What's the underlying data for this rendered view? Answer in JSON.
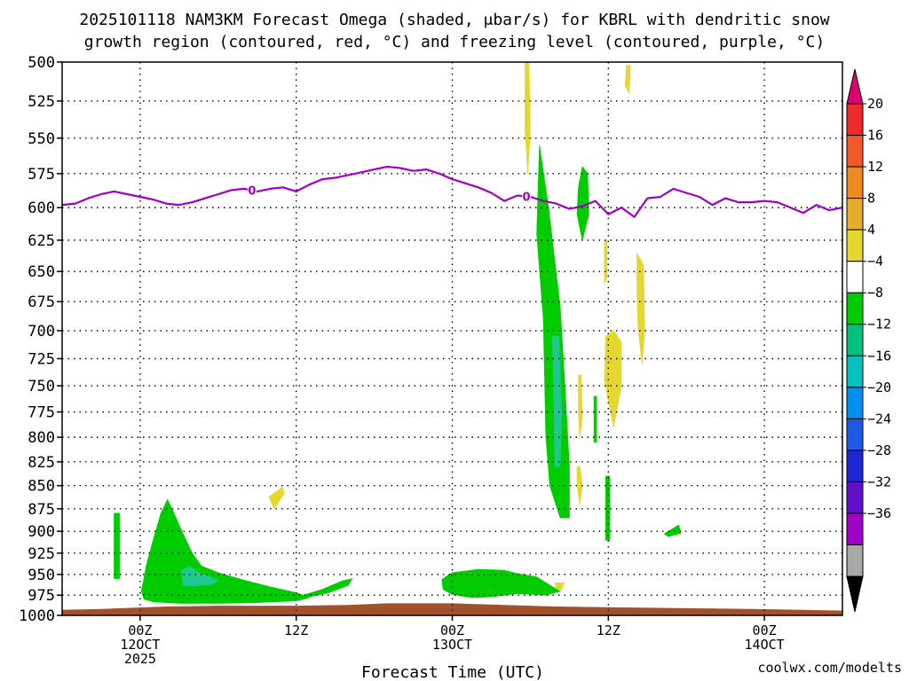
{
  "chart_data": {
    "type": "heatmap",
    "title_line1": "2025101118 NAM3KM Forecast Omega (shaded, μbar/s) for KBRL with dendritic snow",
    "title_line2": "growth region (contoured, red, °C) and freezing level (contoured, purple, °C)",
    "xlabel": "Forecast Time (UTC)",
    "credit": "coolwx.com/modelts",
    "y_axis": {
      "unit": "hPa",
      "reversed": true,
      "ylim": [
        1000,
        500
      ],
      "ticks": [
        500,
        525,
        550,
        575,
        600,
        625,
        650,
        675,
        700,
        725,
        750,
        775,
        800,
        825,
        850,
        875,
        900,
        925,
        950,
        975,
        1000
      ]
    },
    "x_axis": {
      "range_hours": [
        0,
        60
      ],
      "ticks": [
        {
          "hour": 6,
          "lines": [
            "00Z",
            "12OCT",
            "2025"
          ]
        },
        {
          "hour": 18,
          "lines": [
            "12Z"
          ]
        },
        {
          "hour": 30,
          "lines": [
            "00Z",
            "13OCT"
          ]
        },
        {
          "hour": 42,
          "lines": [
            "12Z"
          ]
        },
        {
          "hour": 54,
          "lines": [
            "00Z",
            "14OCT"
          ]
        }
      ]
    },
    "grid": true,
    "colorbar": {
      "placement": "right",
      "labels": [
        "20",
        "16",
        "12",
        "8",
        "4",
        "-4",
        "-8",
        "-12",
        "-16",
        "-20",
        "-24",
        "-28",
        "-32",
        "-36"
      ],
      "colors": [
        "#e0006e",
        "#f02a2a",
        "#f05a28",
        "#ef8a1e",
        "#e6ad2c",
        "#e4d830",
        "#ffffff",
        "#00cc00",
        "#00c080",
        "#00c0c0",
        "#0090f0",
        "#1e5ae6",
        "#1e28d2",
        "#6010c8",
        "#a000c8",
        "#a8a8a8",
        "#000000"
      ]
    },
    "colors": {
      "freezing_level": "#a000c8",
      "terrain": "#a0522d",
      "credit": "#d03030",
      "omega_neg_4": "#00cc00",
      "omega_neg_8": "#20c890",
      "omega_pos_4": "#e4d830"
    },
    "freezing_level": {
      "label": "0",
      "label_hours": [
        14.6,
        35.7
      ],
      "points": [
        [
          0,
          598
        ],
        [
          1,
          597
        ],
        [
          2,
          593
        ],
        [
          3,
          590
        ],
        [
          4,
          588
        ],
        [
          5,
          590
        ],
        [
          6,
          592
        ],
        [
          7,
          594
        ],
        [
          8,
          597
        ],
        [
          9,
          598
        ],
        [
          10,
          596
        ],
        [
          11,
          593
        ],
        [
          12,
          590
        ],
        [
          13,
          587
        ],
        [
          14,
          586
        ],
        [
          15,
          588
        ],
        [
          16,
          586
        ],
        [
          17,
          585
        ],
        [
          18,
          588
        ],
        [
          19,
          583
        ],
        [
          20,
          579
        ],
        [
          21,
          578
        ],
        [
          22,
          576
        ],
        [
          23,
          574
        ],
        [
          24,
          572
        ],
        [
          25,
          570
        ],
        [
          26,
          571
        ],
        [
          27,
          573
        ],
        [
          28,
          572
        ],
        [
          29,
          575
        ],
        [
          30,
          579
        ],
        [
          31,
          582
        ],
        [
          32,
          585
        ],
        [
          33,
          589
        ],
        [
          34,
          595
        ],
        [
          35,
          591
        ],
        [
          36,
          592
        ],
        [
          37,
          595
        ],
        [
          38,
          597
        ],
        [
          39,
          601
        ],
        [
          40,
          599
        ],
        [
          41,
          595
        ],
        [
          42,
          605
        ],
        [
          43,
          600
        ],
        [
          44,
          607
        ],
        [
          45,
          593
        ],
        [
          46,
          592
        ],
        [
          47,
          586
        ],
        [
          48,
          589
        ],
        [
          49,
          592
        ],
        [
          50,
          598
        ],
        [
          51,
          593
        ],
        [
          52,
          596
        ],
        [
          53,
          596
        ],
        [
          54,
          595
        ],
        [
          55,
          596
        ],
        [
          56,
          600
        ],
        [
          57,
          604
        ],
        [
          58,
          598
        ],
        [
          59,
          602
        ],
        [
          60,
          600
        ]
      ]
    },
    "terrain_top": [
      [
        0,
        993
      ],
      [
        3,
        992
      ],
      [
        8,
        989
      ],
      [
        12,
        988
      ],
      [
        18,
        988
      ],
      [
        22,
        987
      ],
      [
        25,
        985
      ],
      [
        30,
        985
      ],
      [
        34,
        987
      ],
      [
        38,
        989
      ],
      [
        43,
        990
      ],
      [
        48,
        991
      ],
      [
        53,
        992
      ],
      [
        57,
        993
      ],
      [
        60,
        994
      ]
    ],
    "omega_regions": [
      {
        "value": -4,
        "points": [
          [
            4.0,
            880
          ],
          [
            4.4,
            880
          ],
          [
            4.4,
            955
          ],
          [
            4.0,
            955
          ]
        ]
      },
      {
        "value": -4,
        "points": [
          [
            6.1,
            970
          ],
          [
            6.5,
            938
          ],
          [
            7.0,
            910
          ],
          [
            7.6,
            880
          ],
          [
            8.1,
            865
          ],
          [
            8.6,
            880
          ],
          [
            9.2,
            900
          ],
          [
            10.0,
            925
          ],
          [
            10.7,
            940
          ],
          [
            12.0,
            948
          ],
          [
            14.0,
            957
          ],
          [
            16.0,
            965
          ],
          [
            18.0,
            972
          ],
          [
            19.0,
            978
          ],
          [
            18.0,
            982
          ],
          [
            15.0,
            984
          ],
          [
            12.0,
            985
          ],
          [
            9.0,
            985
          ],
          [
            7.0,
            983
          ],
          [
            6.3,
            980
          ]
        ]
      },
      {
        "value": -4,
        "points": [
          [
            18.1,
            977
          ],
          [
            20.0,
            968
          ],
          [
            21.5,
            958
          ],
          [
            22.3,
            955
          ],
          [
            22.0,
            963
          ],
          [
            20.5,
            972
          ],
          [
            19.0,
            977
          ]
        ]
      },
      {
        "value": -4,
        "points": [
          [
            29.2,
            956
          ],
          [
            30.0,
            948
          ],
          [
            32.0,
            944
          ],
          [
            34.0,
            945
          ],
          [
            35.0,
            949
          ],
          [
            36.5,
            953
          ],
          [
            37.5,
            963
          ],
          [
            38.3,
            970
          ],
          [
            37.2,
            975
          ],
          [
            35.0,
            973
          ],
          [
            33.0,
            977
          ],
          [
            31.5,
            978
          ],
          [
            30.0,
            974
          ],
          [
            29.3,
            968
          ]
        ]
      },
      {
        "value": -4,
        "points": [
          [
            36.7,
            555
          ],
          [
            37.4,
            600
          ],
          [
            38.3,
            680
          ],
          [
            38.7,
            760
          ],
          [
            39.0,
            830
          ],
          [
            39.0,
            885
          ],
          [
            38.3,
            885
          ],
          [
            37.5,
            850
          ],
          [
            37.2,
            800
          ],
          [
            37.0,
            690
          ],
          [
            36.5,
            620
          ]
        ]
      },
      {
        "value": -4,
        "points": [
          [
            40.0,
            570
          ],
          [
            40.4,
            575
          ],
          [
            40.5,
            605
          ],
          [
            40.0,
            625
          ],
          [
            39.6,
            605
          ],
          [
            39.7,
            585
          ]
        ]
      },
      {
        "value": -4,
        "points": [
          [
            40.9,
            760
          ],
          [
            41.1,
            760
          ],
          [
            41.1,
            805
          ],
          [
            40.9,
            805
          ]
        ]
      },
      {
        "value": -4,
        "points": [
          [
            41.8,
            840
          ],
          [
            42.1,
            840
          ],
          [
            42.1,
            910
          ],
          [
            41.8,
            910
          ]
        ]
      },
      {
        "value": -4,
        "points": [
          [
            46.3,
            903
          ],
          [
            47.4,
            893
          ],
          [
            47.6,
            902
          ],
          [
            46.6,
            906
          ]
        ]
      },
      {
        "value": -8,
        "points": [
          [
            9.2,
            945
          ],
          [
            9.8,
            940
          ],
          [
            10.5,
            948
          ],
          [
            12.0,
            957
          ],
          [
            11.5,
            962
          ],
          [
            10.0,
            964
          ],
          [
            9.3,
            963
          ]
        ]
      },
      {
        "value": -8,
        "points": [
          [
            37.7,
            705
          ],
          [
            38.2,
            705
          ],
          [
            38.4,
            775
          ],
          [
            38.3,
            830
          ],
          [
            37.9,
            830
          ],
          [
            37.8,
            760
          ]
        ]
      },
      {
        "value": 4,
        "points": [
          [
            35.6,
            500
          ],
          [
            35.9,
            500
          ],
          [
            36.0,
            545
          ],
          [
            35.8,
            575
          ],
          [
            35.6,
            545
          ]
        ]
      },
      {
        "value": 4,
        "points": [
          [
            43.4,
            502
          ],
          [
            43.7,
            502
          ],
          [
            43.6,
            520
          ],
          [
            43.3,
            515
          ]
        ]
      },
      {
        "value": 4,
        "points": [
          [
            41.7,
            625
          ],
          [
            41.9,
            625
          ],
          [
            41.9,
            655
          ],
          [
            41.7,
            660
          ]
        ]
      },
      {
        "value": 4,
        "points": [
          [
            44.2,
            635
          ],
          [
            44.7,
            645
          ],
          [
            44.8,
            700
          ],
          [
            44.6,
            730
          ],
          [
            44.3,
            700
          ],
          [
            44.2,
            665
          ]
        ]
      },
      {
        "value": 4,
        "points": [
          [
            41.8,
            705
          ],
          [
            42.4,
            700
          ],
          [
            43.0,
            710
          ],
          [
            43.0,
            750
          ],
          [
            42.4,
            790
          ],
          [
            41.7,
            745
          ]
        ]
      },
      {
        "value": 4,
        "points": [
          [
            39.7,
            740
          ],
          [
            39.9,
            740
          ],
          [
            40.0,
            780
          ],
          [
            39.8,
            800
          ],
          [
            39.7,
            775
          ]
        ]
      },
      {
        "value": 4,
        "points": [
          [
            39.6,
            830
          ],
          [
            39.8,
            830
          ],
          [
            40.0,
            850
          ],
          [
            39.8,
            870
          ],
          [
            39.6,
            850
          ]
        ]
      },
      {
        "value": 4,
        "points": [
          [
            15.9,
            862
          ],
          [
            16.9,
            852
          ],
          [
            17.1,
            858
          ],
          [
            16.3,
            875
          ]
        ]
      },
      {
        "value": 8,
        "points": [
          [
            37.9,
            960
          ],
          [
            38.6,
            960
          ],
          [
            38.4,
            968
          ],
          [
            38.0,
            967
          ]
        ]
      }
    ]
  }
}
